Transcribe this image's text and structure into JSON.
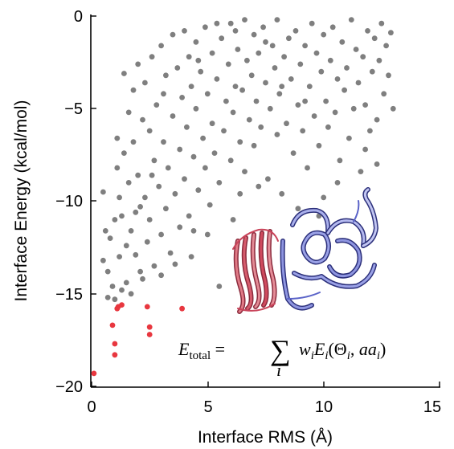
{
  "chart_data": {
    "type": "scatter",
    "title": "",
    "xlabel": "Interface RMS (Å)",
    "ylabel": "Interface Energy (kcal/mol)",
    "xlim": [
      0,
      15
    ],
    "ylim": [
      -20,
      0
    ],
    "xticks": [
      "0",
      "5",
      "10",
      "15"
    ],
    "yticks": [
      "0",
      "−5",
      "−10",
      "−15",
      "−20"
    ],
    "grid": false,
    "annotation": "E_total = Σ_i w_i E_i(Θ_i, aa_i)",
    "colors": {
      "decoys": "#7f7f7f",
      "low_rms": "#e8373f",
      "protein_a": "#c9445a",
      "protein_b": "#5a63c8"
    },
    "series": [
      {
        "color": "#e8373f",
        "points": [
          [
            0.1,
            -19.3
          ],
          [
            0.9,
            -16.7
          ],
          [
            1.0,
            -17.7
          ],
          [
            1.0,
            -18.3
          ],
          [
            1.1,
            -15.8
          ],
          [
            1.15,
            -15.7
          ],
          [
            1.3,
            -15.6
          ],
          [
            2.4,
            -15.7
          ],
          [
            2.5,
            -16.8
          ],
          [
            2.5,
            -17.2
          ],
          [
            3.9,
            -15.8
          ]
        ]
      },
      {
        "color": "#7f7f7f",
        "points": [
          [
            0.5,
            -9.5
          ],
          [
            0.5,
            -13.2
          ],
          [
            0.6,
            -11.6
          ],
          [
            0.7,
            -13.8
          ],
          [
            0.7,
            -15.2
          ],
          [
            0.8,
            -12.0
          ],
          [
            0.9,
            -14.6
          ],
          [
            1.0,
            -11.0
          ],
          [
            1.0,
            -15.3
          ],
          [
            1.1,
            -6.6
          ],
          [
            1.1,
            -8.2
          ],
          [
            1.2,
            -9.8
          ],
          [
            1.2,
            -13.0
          ],
          [
            1.3,
            -10.8
          ],
          [
            1.3,
            -14.8
          ],
          [
            1.4,
            -3.1
          ],
          [
            1.4,
            -7.4
          ],
          [
            1.5,
            -12.4
          ],
          [
            1.5,
            -14.4
          ],
          [
            1.6,
            -5.2
          ],
          [
            1.6,
            -9.0
          ],
          [
            1.7,
            -11.6
          ],
          [
            1.8,
            -4.0
          ],
          [
            1.8,
            -6.8
          ],
          [
            1.9,
            -12.9
          ],
          [
            2.0,
            -2.6
          ],
          [
            2.0,
            -8.6
          ],
          [
            2.1,
            -10.3
          ],
          [
            2.1,
            -13.8
          ],
          [
            2.2,
            -5.6
          ],
          [
            2.3,
            -3.6
          ],
          [
            2.3,
            -9.8
          ],
          [
            2.4,
            -12.2
          ],
          [
            2.5,
            -6.2
          ],
          [
            2.5,
            -11.0
          ],
          [
            2.6,
            -2.2
          ],
          [
            2.7,
            -7.8
          ],
          [
            2.7,
            -13.5
          ],
          [
            2.8,
            -4.8
          ],
          [
            2.9,
            -9.2
          ],
          [
            3.0,
            -1.6
          ],
          [
            3.0,
            -11.8
          ],
          [
            3.1,
            -6.8
          ],
          [
            3.2,
            -3.2
          ],
          [
            3.2,
            -10.4
          ],
          [
            3.3,
            -8.2
          ],
          [
            3.4,
            -12.8
          ],
          [
            3.5,
            -1.0
          ],
          [
            3.5,
            -5.4
          ],
          [
            3.6,
            -9.6
          ],
          [
            3.7,
            -2.8
          ],
          [
            3.8,
            -7.2
          ],
          [
            3.8,
            -11.4
          ],
          [
            3.9,
            -4.4
          ],
          [
            4.0,
            -0.8
          ],
          [
            4.0,
            -8.8
          ],
          [
            4.1,
            -6.0
          ],
          [
            4.2,
            -2.2
          ],
          [
            4.2,
            -10.8
          ],
          [
            4.3,
            -3.8
          ],
          [
            4.4,
            -7.6
          ],
          [
            4.5,
            -1.4
          ],
          [
            4.5,
            -5.0
          ],
          [
            4.6,
            -9.4
          ],
          [
            4.7,
            -3.0
          ],
          [
            4.8,
            -6.6
          ],
          [
            4.9,
            -0.6
          ],
          [
            4.9,
            -8.2
          ],
          [
            5.0,
            -4.2
          ],
          [
            5.1,
            -10.2
          ],
          [
            5.2,
            -2.0
          ],
          [
            5.2,
            -5.8
          ],
          [
            5.3,
            -7.4
          ],
          [
            5.4,
            -3.4
          ],
          [
            5.5,
            -14.6
          ],
          [
            5.5,
            -9.0
          ],
          [
            5.6,
            -1.2
          ],
          [
            5.7,
            -6.2
          ],
          [
            5.8,
            -4.6
          ],
          [
            5.9,
            -2.6
          ],
          [
            6.0,
            -7.8
          ],
          [
            6.0,
            -0.4
          ],
          [
            6.1,
            -5.2
          ],
          [
            6.2,
            -3.8
          ],
          [
            6.3,
            -1.8
          ],
          [
            6.4,
            -6.8
          ],
          [
            6.5,
            -4.0
          ],
          [
            6.6,
            -0.2
          ],
          [
            6.6,
            -8.4
          ],
          [
            6.7,
            -2.4
          ],
          [
            6.8,
            -5.6
          ],
          [
            6.9,
            -3.2
          ],
          [
            7.0,
            -1.0
          ],
          [
            7.0,
            -7.0
          ],
          [
            7.1,
            -4.6
          ],
          [
            7.2,
            -2.0
          ],
          [
            7.3,
            -6.0
          ],
          [
            7.4,
            -0.6
          ],
          [
            7.5,
            -3.6
          ],
          [
            7.6,
            -8.8
          ],
          [
            7.7,
            -5.0
          ],
          [
            7.8,
            -1.6
          ],
          [
            7.9,
            -2.8
          ],
          [
            8.0,
            -6.4
          ],
          [
            8.0,
            -0.2
          ],
          [
            8.1,
            -4.2
          ],
          [
            8.2,
            -9.6
          ],
          [
            8.3,
            -2.2
          ],
          [
            8.4,
            -5.8
          ],
          [
            8.5,
            -1.2
          ],
          [
            8.6,
            -3.4
          ],
          [
            8.7,
            -7.4
          ],
          [
            8.8,
            -0.8
          ],
          [
            8.9,
            -4.8
          ],
          [
            9.0,
            -2.6
          ],
          [
            9.1,
            -6.2
          ],
          [
            9.2,
            -1.6
          ],
          [
            9.3,
            -8.2
          ],
          [
            9.4,
            -3.8
          ],
          [
            9.5,
            -0.4
          ],
          [
            9.6,
            -5.4
          ],
          [
            9.7,
            -2.0
          ],
          [
            9.8,
            -7.0
          ],
          [
            9.9,
            -3.0
          ],
          [
            10.0,
            -1.0
          ],
          [
            10.0,
            -9.8
          ],
          [
            10.1,
            -4.6
          ],
          [
            10.2,
            -6.0
          ],
          [
            10.3,
            -2.4
          ],
          [
            10.4,
            -0.6
          ],
          [
            10.5,
            -5.2
          ],
          [
            10.6,
            -3.4
          ],
          [
            10.7,
            -7.8
          ],
          [
            10.8,
            -1.4
          ],
          [
            10.9,
            -4.0
          ],
          [
            11.0,
            -2.8
          ],
          [
            11.1,
            -6.6
          ],
          [
            11.2,
            -0.2
          ],
          [
            11.3,
            -5.0
          ],
          [
            11.4,
            -1.8
          ],
          [
            11.5,
            -3.6
          ],
          [
            11.6,
            -8.4
          ],
          [
            11.7,
            -2.2
          ],
          [
            11.8,
            -4.8
          ],
          [
            11.9,
            -0.8
          ],
          [
            12.0,
            -6.2
          ],
          [
            12.1,
            -3.0
          ],
          [
            12.2,
            -1.2
          ],
          [
            12.3,
            -5.6
          ],
          [
            12.4,
            -2.4
          ],
          [
            12.5,
            -0.4
          ],
          [
            12.6,
            -4.2
          ],
          [
            12.7,
            -1.6
          ],
          [
            12.8,
            -3.2
          ],
          [
            13.0,
            -5.0
          ],
          [
            12.9,
            -0.9
          ],
          [
            1.7,
            -15.0
          ],
          [
            2.2,
            -14.2
          ],
          [
            3.0,
            -14.0
          ],
          [
            3.6,
            -13.4
          ],
          [
            1.9,
            -10.6
          ],
          [
            2.6,
            -8.6
          ],
          [
            4.4,
            -11.6
          ],
          [
            3.1,
            -4.2
          ],
          [
            4.6,
            -2.4
          ],
          [
            5.0,
            -11.8
          ],
          [
            6.4,
            -9.6
          ],
          [
            7.2,
            -9.2
          ],
          [
            8.9,
            -10.4
          ],
          [
            9.8,
            -10.8
          ],
          [
            10.6,
            -9.0
          ],
          [
            6.2,
            -0.8
          ],
          [
            5.4,
            -0.4
          ],
          [
            7.5,
            -1.4
          ],
          [
            11.8,
            -7.2
          ],
          [
            12.3,
            -8.0
          ],
          [
            9.2,
            -4.6
          ],
          [
            8.2,
            -3.8
          ],
          [
            4.3,
            -13.0
          ],
          [
            6.1,
            -11.0
          ]
        ]
      }
    ]
  }
}
